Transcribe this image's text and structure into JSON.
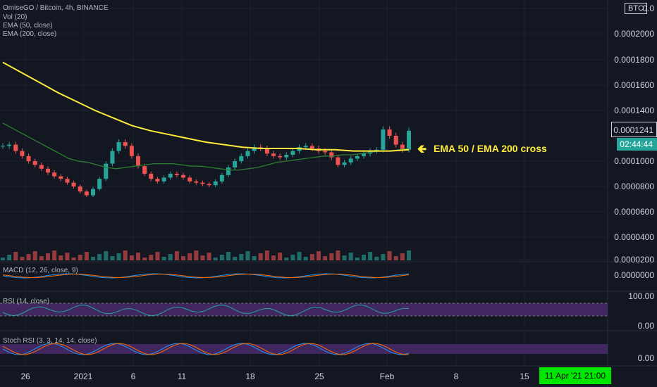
{
  "header": {
    "symbol": "OmiseGO / Bitcoin, 4h, BINANCE",
    "vol": "Vol (20)",
    "ema50": "EMA (50, close)",
    "ema200": "EMA (200, close)",
    "currency": "BTC"
  },
  "panes": {
    "macd": "MACD (12, 26, close, 9)",
    "rsi": "RSI (14, close)",
    "stoch": "Stoch RSI (3, 3, 14, 14, close)"
  },
  "price_axis": [
    "0.0",
    "0.0002000",
    "0.0001800",
    "0.0001600",
    "0.0001400",
    "0.0001000",
    "0.0000800",
    "0.0000600",
    "0.0000400",
    "0.0000200"
  ],
  "last_price": "0.0001241",
  "countdown": "02:44:44",
  "macd_axis": "0.0000000",
  "rsi_axis": [
    "100.00",
    "0.00"
  ],
  "stoch_axis": "0.00",
  "time_axis": [
    "26",
    "2021",
    "6",
    "11",
    "18",
    "25",
    "Feb",
    "8",
    "15"
  ],
  "time_stamp": "11 Apr '21   21:00",
  "annotation": "EMA 50 / EMA 200 cross",
  "colors": {
    "up": "#26a69a",
    "down": "#ef5350",
    "ema50": "#2e7d32",
    "ema200": "#ffeb3b",
    "rsi_band": "#4a2a6a",
    "accent": "#00e600"
  },
  "chart_data": {
    "type": "candlestick",
    "series_close_btc": [
      0.000112,
      0.000113,
      0.000108,
      0.000104,
      0.0001,
      9.7e-05,
      9.4e-05,
      9.1e-05,
      8.8e-05,
      8.6e-05,
      8.3e-05,
      8e-05,
      7.6e-05,
      7.3e-05,
      7.8e-05,
      8.6e-05,
      9.8e-05,
      0.000108,
      0.000115,
      0.000112,
      0.000104,
      9.6e-05,
      9e-05,
      8.6e-05,
      8.4e-05,
      8.7e-05,
      9e-05,
      8.9e-05,
      8.7e-05,
      8.4e-05,
      8.3e-05,
      8.2e-05,
      8.1e-05,
      8.4e-05,
      8.9e-05,
      9.5e-05,
      0.0001,
      0.000104,
      0.000108,
      0.000111,
      0.00011,
      0.000106,
      0.000104,
      0.000103,
      0.000105,
      0.000108,
      0.000111,
      0.000112,
      0.00011,
      0.000108,
      0.000107,
      0.000103,
      9.7e-05,
      9.9e-05,
      0.000102,
      0.000104,
      0.000106,
      0.000108,
      0.000109,
      0.000125,
      0.00012,
      0.000113,
      0.000109,
      0.000124
    ],
    "ema50_btc": [
      0.00013,
      0.000126,
      0.000122,
      0.000118,
      0.000114,
      0.00011,
      0.000106,
      0.000102,
      0.0001,
      9.9e-05,
      9.7e-05,
      9.5e-05,
      9.4e-05,
      9.5e-05,
      9.6e-05,
      9.7e-05,
      9.8e-05,
      9.8e-05,
      9.8e-05,
      9.7e-05,
      9.6e-05,
      9.6e-05,
      9.5e-05,
      9.4e-05,
      9.3e-05,
      9.3e-05,
      9.4e-05,
      9.5e-05,
      9.7e-05,
      9.9e-05,
      0.0001,
      0.000101,
      0.000102,
      0.000103,
      0.000104,
      0.000104,
      0.000105,
      0.000105,
      0.000106,
      0.000107,
      0.000108,
      0.000108,
      0.000109,
      0.00011
    ],
    "ema200_btc": [
      0.000178,
      0.00017,
      0.000162,
      0.000154,
      0.000147,
      0.00014,
      0.000134,
      0.000128,
      0.000124,
      0.000121,
      0.000118,
      0.000115,
      0.000113,
      0.000111,
      0.00011,
      0.00011,
      0.00011,
      0.000109,
      0.000109,
      0.000108,
      0.000108,
      0.000108,
      0.000109
    ],
    "ylim": [
      2e-05,
      0.00021
    ],
    "annotation": "EMA 50 / EMA 200 cross"
  }
}
